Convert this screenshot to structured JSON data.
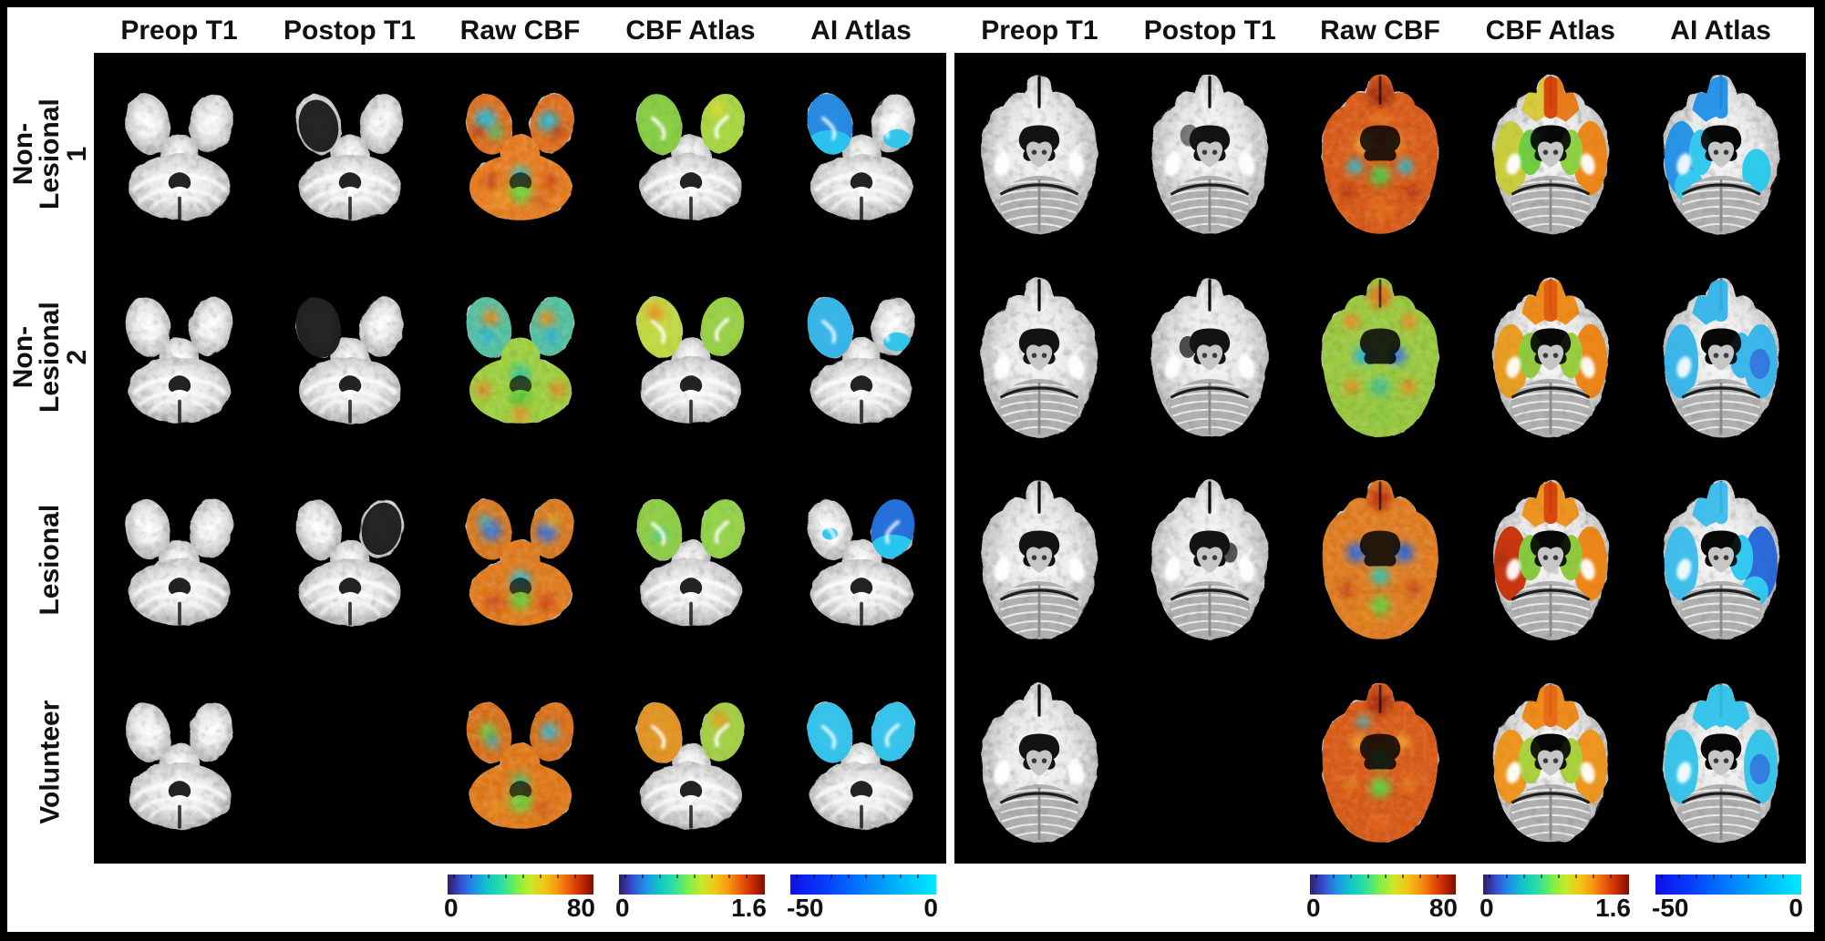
{
  "row_labels": [
    "Non-Lesional 1",
    "Non-Lesional 2",
    "Lesional",
    "Volunteer"
  ],
  "panels": [
    {
      "name": "left-panel",
      "slice_level": "inferior-axial-slice",
      "column_headers": [
        "Preop T1",
        "Postop T1",
        "Raw CBF",
        "CBF Atlas",
        "AI Atlas"
      ],
      "rows": [
        {
          "label": "Non-Lesional 1",
          "cells": [
            {
              "type": "t1"
            },
            {
              "type": "t1_postop",
              "variant": "left"
            },
            {
              "type": "raw_cbf",
              "variant": "hot"
            },
            {
              "type": "cbf_atlas",
              "variant": "a1"
            },
            {
              "type": "ai_atlas",
              "variant": "i1"
            }
          ]
        },
        {
          "label": "Non-Lesional 2",
          "cells": [
            {
              "type": "t1"
            },
            {
              "type": "t1_postop",
              "variant": "left2"
            },
            {
              "type": "raw_cbf",
              "variant": "mixed"
            },
            {
              "type": "cbf_atlas",
              "variant": "a2"
            },
            {
              "type": "ai_atlas",
              "variant": "i2"
            }
          ]
        },
        {
          "label": "Lesional",
          "cells": [
            {
              "type": "t1"
            },
            {
              "type": "t1_postop",
              "variant": "right"
            },
            {
              "type": "raw_cbf",
              "variant": "lesional"
            },
            {
              "type": "cbf_atlas",
              "variant": "a3"
            },
            {
              "type": "ai_atlas",
              "variant": "i3"
            }
          ]
        },
        {
          "label": "Volunteer",
          "cells": [
            {
              "type": "t1"
            },
            {
              "type": "empty"
            },
            {
              "type": "raw_cbf",
              "variant": "volunteer"
            },
            {
              "type": "cbf_atlas",
              "variant": "a4"
            },
            {
              "type": "ai_atlas",
              "variant": "i4"
            }
          ]
        }
      ],
      "colorbars": [
        {
          "for_column": "Raw CBF",
          "colormap": "jet",
          "min_label": "0",
          "max_label": "80"
        },
        {
          "for_column": "CBF Atlas",
          "colormap": "jet",
          "min_label": "0",
          "max_label": "1.6"
        },
        {
          "for_column": "AI Atlas",
          "colormap": "blue",
          "min_label": "-50",
          "max_label": "0"
        }
      ]
    },
    {
      "name": "right-panel",
      "slice_level": "mid-axial-slice",
      "column_headers": [
        "Preop T1",
        "Postop T1",
        "Raw CBF",
        "CBF Atlas",
        "AI Atlas"
      ],
      "rows": [
        {
          "label": "Non-Lesional 1",
          "cells": [
            {
              "type": "t1"
            },
            {
              "type": "t1_postop",
              "variant": "subtle-left"
            },
            {
              "type": "raw_cbf",
              "variant": "hot"
            },
            {
              "type": "cbf_atlas",
              "variant": "a1"
            },
            {
              "type": "ai_atlas",
              "variant": "i1"
            }
          ]
        },
        {
          "label": "Non-Lesional 2",
          "cells": [
            {
              "type": "t1"
            },
            {
              "type": "t1_postop",
              "variant": "cavity-left"
            },
            {
              "type": "raw_cbf",
              "variant": "mixed"
            },
            {
              "type": "cbf_atlas",
              "variant": "a2"
            },
            {
              "type": "ai_atlas",
              "variant": "i2"
            }
          ]
        },
        {
          "label": "Lesional",
          "cells": [
            {
              "type": "t1"
            },
            {
              "type": "t1_postop",
              "variant": "cavity-right"
            },
            {
              "type": "raw_cbf",
              "variant": "lesional"
            },
            {
              "type": "cbf_atlas",
              "variant": "a3"
            },
            {
              "type": "ai_atlas",
              "variant": "i3"
            }
          ]
        },
        {
          "label": "Volunteer",
          "cells": [
            {
              "type": "t1"
            },
            {
              "type": "empty"
            },
            {
              "type": "raw_cbf",
              "variant": "volunteer"
            },
            {
              "type": "cbf_atlas",
              "variant": "a4"
            },
            {
              "type": "ai_atlas",
              "variant": "i4"
            }
          ]
        }
      ],
      "colorbars": [
        {
          "for_column": "Raw CBF",
          "colormap": "jet",
          "min_label": "0",
          "max_label": "80"
        },
        {
          "for_column": "CBF Atlas",
          "colormap": "jet",
          "min_label": "0",
          "max_label": "1.6"
        },
        {
          "for_column": "AI Atlas",
          "colormap": "blue",
          "min_label": "-50",
          "max_label": "0"
        }
      ]
    }
  ],
  "colors": {
    "page_border": "#000000",
    "figure_background": "#ffffff",
    "panel_background": "#000000",
    "text": "#111111",
    "jet_gradient_stops": [
      "#2c2060 0%",
      "#3847c8 8%",
      "#2090e8 18%",
      "#10c8c8 28%",
      "#30e0a0 38%",
      "#80ee48 48%",
      "#c8e828 57%",
      "#f0c818 66%",
      "#f89810 75%",
      "#e85808 84%",
      "#c42804 92%",
      "#7a1000 100%"
    ],
    "blue_gradient_stops": [
      "#1010e8 0%",
      "#0838f8 22%",
      "#0078ff 48%",
      "#00b8f8 75%",
      "#00e9ff 100%"
    ],
    "ai_blue": "#2090e6",
    "ai_deep_blue": "#1a6ad8",
    "ai_cyan": "#28c4ec",
    "atlas_green": "#84cc3e",
    "atlas_yellow_green": "#c2d83e",
    "atlas_orange": "#ee8412",
    "atlas_red_orange": "#d84008",
    "cbf_hot": "#dd6e1c",
    "cbf_green": "#66cc33",
    "cbf_cyan": "#2fb3cf"
  }
}
